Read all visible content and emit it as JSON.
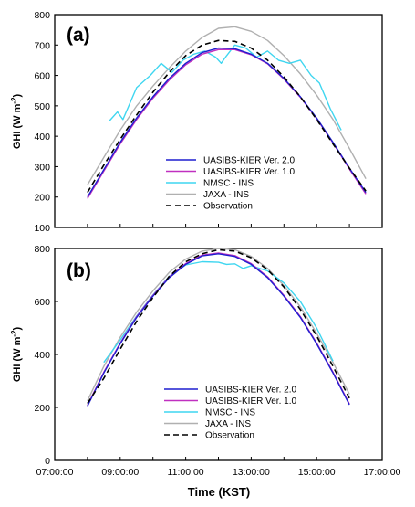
{
  "figure": {
    "xlabel": "Time (KST)",
    "ylabel_main": "GHI (W m",
    "ylabel_sup": "-2",
    "ylabel_close": ")"
  },
  "chart_data": [
    {
      "type": "line",
      "panel_label": "(a)",
      "xlim": [
        "07:00:00",
        "17:00:00"
      ],
      "ylim": [
        100,
        800
      ],
      "yticks": [
        100,
        200,
        300,
        400,
        500,
        600,
        700,
        800
      ],
      "x_tick_labels": [],
      "grid": false,
      "legend_position": "lower-center",
      "series": [
        {
          "name": "UASIBS-KIER Ver. 2.0",
          "color": "#1f1fcf",
          "dash": "none",
          "x": [
            "08:00",
            "08:30",
            "09:00",
            "09:30",
            "10:00",
            "10:30",
            "11:00",
            "11:30",
            "12:00",
            "12:30",
            "13:00",
            "13:30",
            "14:00",
            "14:30",
            "15:00",
            "15:30",
            "16:00",
            "16:30"
          ],
          "y": [
            200,
            290,
            380,
            460,
            530,
            590,
            640,
            675,
            690,
            688,
            670,
            640,
            590,
            530,
            460,
            380,
            295,
            215
          ]
        },
        {
          "name": "UASIBS-KIER Ver. 1.0",
          "color": "#c030c0",
          "dash": "none",
          "x": [
            "08:00",
            "08:30",
            "09:00",
            "09:30",
            "10:00",
            "10:30",
            "11:00",
            "11:30",
            "12:00",
            "12:30",
            "13:00",
            "13:30",
            "14:00",
            "14:30",
            "15:00",
            "15:30",
            "16:00",
            "16:30"
          ],
          "y": [
            195,
            285,
            375,
            455,
            525,
            585,
            635,
            670,
            685,
            685,
            668,
            638,
            588,
            528,
            458,
            378,
            292,
            210
          ]
        },
        {
          "name": "NMSC - INS",
          "color": "#3fd6f0",
          "dash": "none",
          "x": [
            "08:40",
            "08:55",
            "09:05",
            "09:30",
            "09:55",
            "10:15",
            "10:35",
            "10:55",
            "11:15",
            "11:35",
            "11:55",
            "12:05",
            "12:15",
            "12:30",
            "12:50",
            "13:10",
            "13:30",
            "13:50",
            "14:10",
            "14:30",
            "14:50",
            "15:05",
            "15:25",
            "15:45"
          ],
          "y": [
            450,
            480,
            455,
            560,
            600,
            640,
            610,
            650,
            670,
            680,
            660,
            640,
            665,
            700,
            690,
            660,
            680,
            650,
            640,
            650,
            600,
            575,
            490,
            420
          ]
        },
        {
          "name": "JAXA - INS",
          "color": "#b0b0b0",
          "dash": "none",
          "x": [
            "08:00",
            "08:30",
            "09:00",
            "09:30",
            "10:00",
            "10:30",
            "11:00",
            "11:30",
            "12:00",
            "12:30",
            "13:00",
            "13:30",
            "14:00",
            "14:30",
            "15:00",
            "15:30",
            "16:00",
            "16:30"
          ],
          "y": [
            240,
            330,
            420,
            500,
            565,
            625,
            680,
            725,
            755,
            760,
            745,
            715,
            665,
            605,
            535,
            455,
            360,
            260
          ]
        },
        {
          "name": "Observation",
          "color": "#000000",
          "dash": "6,4",
          "x": [
            "08:00",
            "08:30",
            "09:00",
            "09:30",
            "10:00",
            "10:30",
            "11:00",
            "11:30",
            "12:00",
            "12:30",
            "13:00",
            "13:30",
            "14:00",
            "14:30",
            "15:00",
            "15:30",
            "16:00",
            "16:30"
          ],
          "y": [
            215,
            305,
            390,
            470,
            545,
            610,
            665,
            700,
            715,
            712,
            690,
            650,
            595,
            530,
            455,
            375,
            295,
            220
          ]
        }
      ]
    },
    {
      "type": "line",
      "panel_label": "(b)",
      "xlim": [
        "07:00:00",
        "17:00:00"
      ],
      "ylim": [
        0,
        800
      ],
      "yticks": [
        0,
        200,
        400,
        600,
        800
      ],
      "x_tick_labels": [
        "07:00:00",
        "09:00:00",
        "11:00:00",
        "13:00:00",
        "15:00:00",
        "17:00:00"
      ],
      "grid": false,
      "legend_position": "lower-center",
      "series": [
        {
          "name": "UASIBS-KIER Ver. 2.0",
          "color": "#1f1fcf",
          "dash": "none",
          "x": [
            "08:00",
            "08:30",
            "09:00",
            "09:30",
            "10:00",
            "10:30",
            "11:00",
            "11:30",
            "12:00",
            "12:30",
            "13:00",
            "13:30",
            "14:00",
            "14:30",
            "15:00",
            "15:30",
            "16:00"
          ],
          "y": [
            205,
            330,
            440,
            540,
            620,
            690,
            740,
            772,
            780,
            770,
            740,
            690,
            620,
            540,
            440,
            330,
            210
          ]
        },
        {
          "name": "UASIBS-KIER Ver. 1.0",
          "color": "#c030c0",
          "dash": "none",
          "x": [
            "08:00",
            "08:30",
            "09:00",
            "09:30",
            "10:00",
            "10:30",
            "11:00",
            "11:30",
            "12:00",
            "12:30",
            "13:00",
            "13:30",
            "14:00",
            "14:30",
            "15:00",
            "15:30",
            "16:00"
          ],
          "y": [
            208,
            333,
            443,
            543,
            623,
            693,
            743,
            775,
            783,
            773,
            743,
            693,
            623,
            543,
            443,
            333,
            213
          ]
        },
        {
          "name": "NMSC - INS",
          "color": "#3fd6f0",
          "dash": "none",
          "x": [
            "08:30",
            "09:00",
            "09:30",
            "10:00",
            "10:30",
            "11:00",
            "11:30",
            "12:00",
            "12:15",
            "12:30",
            "12:45",
            "13:00",
            "13:30",
            "14:00",
            "14:30",
            "15:00",
            "15:30"
          ],
          "y": [
            370,
            455,
            545,
            625,
            695,
            738,
            750,
            748,
            740,
            742,
            725,
            735,
            715,
            670,
            600,
            500,
            375
          ]
        },
        {
          "name": "JAXA - INS",
          "color": "#b0b0b0",
          "dash": "none",
          "x": [
            "08:00",
            "08:30",
            "09:00",
            "09:30",
            "10:00",
            "10:30",
            "11:00",
            "11:30",
            "12:00",
            "12:30",
            "13:00",
            "13:30",
            "14:00",
            "14:30",
            "15:00",
            "15:30",
            "16:00"
          ],
          "y": [
            225,
            355,
            465,
            560,
            640,
            710,
            760,
            790,
            800,
            795,
            770,
            725,
            660,
            580,
            480,
            370,
            250
          ]
        },
        {
          "name": "Observation",
          "color": "#000000",
          "dash": "6,4",
          "x": [
            "08:00",
            "08:30",
            "09:00",
            "09:30",
            "10:00",
            "10:30",
            "11:00",
            "11:30",
            "12:00",
            "12:30",
            "13:00",
            "13:30",
            "14:00",
            "14:30",
            "15:00",
            "15:30",
            "16:00"
          ],
          "y": [
            215,
            310,
            420,
            525,
            615,
            695,
            750,
            780,
            795,
            790,
            765,
            720,
            655,
            570,
            470,
            355,
            235
          ]
        }
      ]
    }
  ]
}
